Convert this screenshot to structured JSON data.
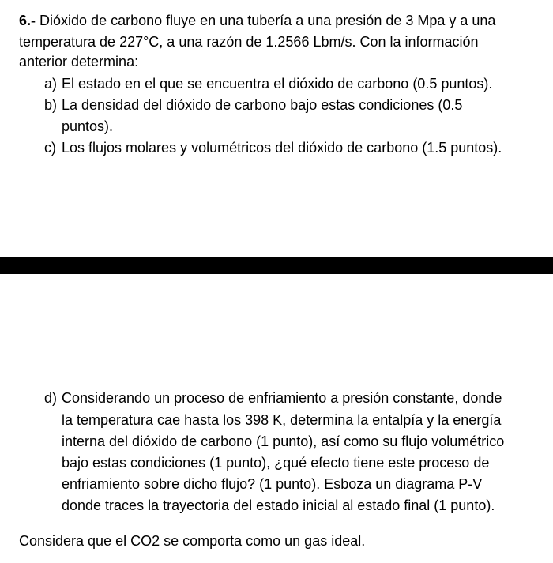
{
  "problem": {
    "number": "6.-",
    "intro_line1": "Dióxido de carbono fluye en una tubería a una presión de 3 Mpa y a una",
    "intro_line2": "temperatura de 227°C, a una razón de 1.2566 Lbm/s. Con la información",
    "intro_line3": "anterior determina:",
    "items": [
      {
        "label": "a)",
        "text": "El estado en el que se encuentra el dióxido de carbono (0.5 puntos)."
      },
      {
        "label": "b)",
        "text": "La densidad del dióxido de carbono bajo estas condiciones (0.5",
        "cont": "puntos)."
      },
      {
        "label": "c)",
        "text": "Los flujos molares y volumétricos del dióxido de carbono (1.5 puntos)."
      }
    ],
    "item_d": {
      "label": "d)",
      "line1": "Considerando un proceso de enfriamiento a presión constante, donde",
      "line2": "la temperatura cae hasta los 398 K, determina la entalpía y la energía",
      "line3": "interna del dióxido de carbono (1 punto), así como su flujo volumétrico",
      "line4": "bajo estas condiciones (1 punto), ¿qué efecto tiene este proceso de",
      "line5": "enfriamiento sobre dicho flujo? (1 punto). Esboza un diagrama P-V",
      "line6": "donde traces la trayectoria del estado inicial al estado final (1 punto)."
    },
    "final_note": "Considera que el CO2 se comporta como un gas ideal."
  }
}
